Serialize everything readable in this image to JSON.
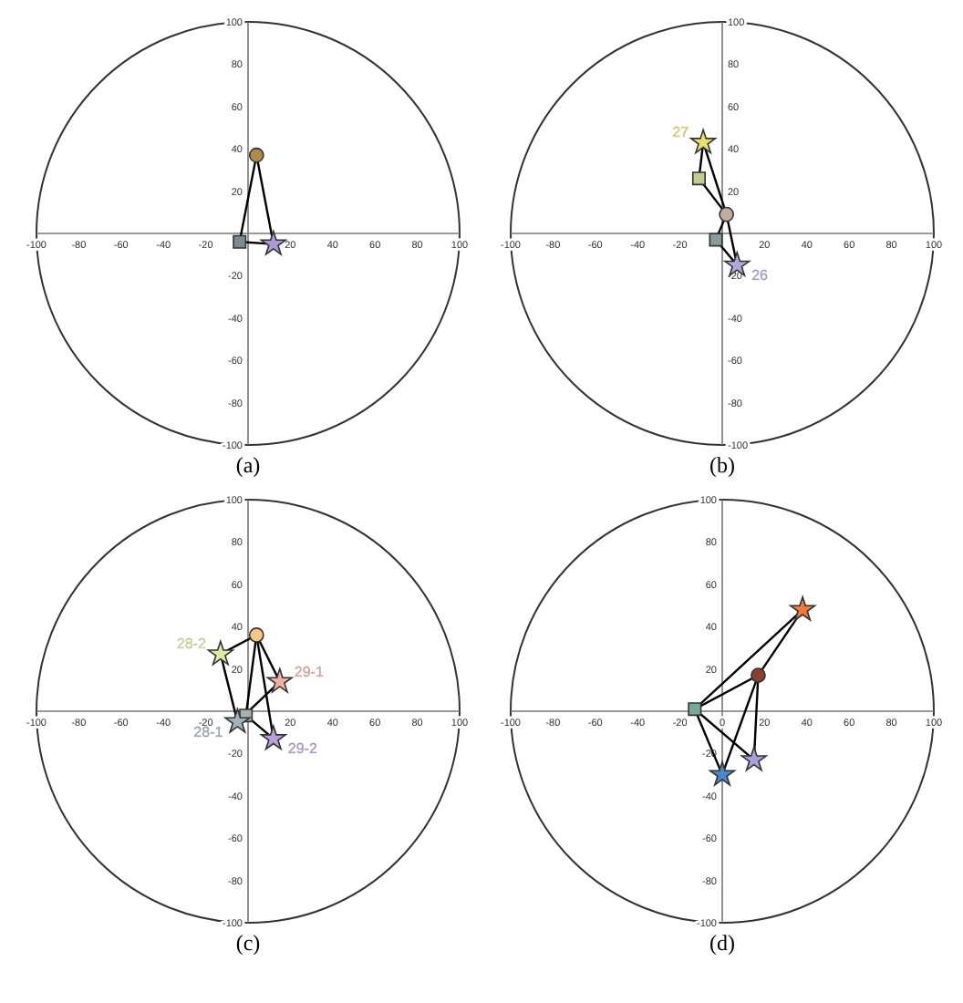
{
  "chart_data": [
    {
      "type": "scatter",
      "title": "(a)",
      "xlim": [
        -100,
        100
      ],
      "ylim": [
        -100,
        100
      ],
      "xticks": [
        -100,
        -80,
        -60,
        -40,
        -20,
        20,
        40,
        60,
        80,
        100
      ],
      "yticks": [
        -100,
        -80,
        -60,
        -40,
        -20,
        20,
        40,
        60,
        80,
        100
      ],
      "series": [
        {
          "type": "line",
          "color": "#000000",
          "x": [
            -4,
            4
          ],
          "values": [
            -4,
            37
          ]
        },
        {
          "type": "line",
          "color": "#000000",
          "x": [
            4,
            12
          ],
          "values": [
            37,
            -5
          ]
        },
        {
          "type": "line",
          "color": "#000000",
          "x": [
            -4,
            12
          ],
          "values": [
            -4,
            -5
          ]
        },
        {
          "marker": "circle",
          "color": "#b08a4a",
          "x": [
            4
          ],
          "values": [
            37
          ]
        },
        {
          "marker": "square",
          "color": "#7a8c8f",
          "x": [
            -4
          ],
          "values": [
            -4
          ]
        },
        {
          "marker": "star",
          "color": "#a99ad6",
          "x": [
            12
          ],
          "values": [
            -5
          ]
        }
      ]
    },
    {
      "type": "scatter",
      "title": "(b)",
      "xlim": [
        -100,
        100
      ],
      "ylim": [
        -100,
        100
      ],
      "xticks": [
        -100,
        -80,
        -60,
        -40,
        -20,
        20,
        40,
        60,
        80,
        100
      ],
      "yticks": [
        -100,
        -80,
        -60,
        -40,
        -20,
        20,
        40,
        60,
        80,
        100
      ],
      "series": [
        {
          "type": "line",
          "color": "#000000",
          "x": [
            -9,
            -11
          ],
          "values": [
            43,
            26
          ]
        },
        {
          "type": "line",
          "color": "#000000",
          "x": [
            -9,
            2
          ],
          "values": [
            43,
            9
          ]
        },
        {
          "type": "line",
          "color": "#000000",
          "x": [
            -11,
            2
          ],
          "values": [
            26,
            9
          ]
        },
        {
          "type": "line",
          "color": "#000000",
          "x": [
            2,
            -3
          ],
          "values": [
            9,
            -3
          ]
        },
        {
          "type": "line",
          "color": "#000000",
          "x": [
            2,
            7
          ],
          "values": [
            9,
            -15
          ]
        },
        {
          "type": "line",
          "color": "#000000",
          "x": [
            -3,
            7
          ],
          "values": [
            -3,
            -15
          ]
        },
        {
          "marker": "square",
          "color": "#c2cc8c",
          "x": [
            -11
          ],
          "values": [
            26
          ]
        },
        {
          "marker": "circle",
          "color": "#bfae9c",
          "x": [
            2
          ],
          "values": [
            9
          ]
        },
        {
          "marker": "square",
          "color": "#8a9a9a",
          "x": [
            -3
          ],
          "values": [
            -3
          ]
        },
        {
          "name": "27",
          "marker": "star",
          "color": "#e8e070",
          "x": [
            -9
          ],
          "values": [
            43
          ]
        },
        {
          "name": "26",
          "marker": "star",
          "color": "#b0a8d8",
          "x": [
            7
          ],
          "values": [
            -15
          ]
        }
      ]
    },
    {
      "type": "scatter",
      "title": "(c)",
      "xlim": [
        -100,
        100
      ],
      "ylim": [
        -100,
        100
      ],
      "xticks": [
        -100,
        -80,
        -60,
        -40,
        -20,
        20,
        40,
        60,
        80,
        100
      ],
      "yticks": [
        -100,
        -80,
        -60,
        -40,
        -20,
        20,
        40,
        60,
        80,
        100
      ],
      "series": [
        {
          "type": "line",
          "color": "#000000",
          "x": [
            4,
            -13
          ],
          "values": [
            36,
            27
          ]
        },
        {
          "type": "line",
          "color": "#000000",
          "x": [
            4,
            15
          ],
          "values": [
            36,
            14
          ]
        },
        {
          "type": "line",
          "color": "#000000",
          "x": [
            4,
            12
          ],
          "values": [
            36,
            -13
          ]
        },
        {
          "type": "line",
          "color": "#000000",
          "x": [
            4,
            -1
          ],
          "values": [
            36,
            -2
          ]
        },
        {
          "type": "line",
          "color": "#000000",
          "x": [
            -13,
            -5
          ],
          "values": [
            27,
            -5
          ]
        },
        {
          "type": "line",
          "color": "#000000",
          "x": [
            15,
            -5
          ],
          "values": [
            14,
            -5
          ]
        },
        {
          "type": "line",
          "color": "#000000",
          "x": [
            -1,
            12
          ],
          "values": [
            -2,
            -13
          ]
        },
        {
          "marker": "circle",
          "color": "#f8c880",
          "x": [
            4
          ],
          "values": [
            36
          ]
        },
        {
          "marker": "square",
          "color": "#a8b0b0",
          "x": [
            -1
          ],
          "values": [
            -2
          ]
        },
        {
          "name": "28-2",
          "marker": "star",
          "color": "#e0e8a0",
          "x": [
            -13
          ],
          "values": [
            27
          ]
        },
        {
          "name": "29-1",
          "marker": "star",
          "color": "#f0b0a0",
          "x": [
            15
          ],
          "values": [
            14
          ]
        },
        {
          "name": "28-1",
          "marker": "star",
          "color": "#a0b4bc",
          "x": [
            -5
          ],
          "values": [
            -5
          ]
        },
        {
          "name": "29-2",
          "marker": "star",
          "color": "#b8a0d8",
          "x": [
            12
          ],
          "values": [
            -13
          ]
        }
      ]
    },
    {
      "type": "scatter",
      "title": "(d)",
      "xlim": [
        -100,
        100
      ],
      "ylim": [
        -100,
        100
      ],
      "xticks": [
        -100,
        -80,
        -60,
        -40,
        -20,
        0,
        20,
        40,
        60,
        80,
        100
      ],
      "yticks": [
        -100,
        -80,
        -60,
        -40,
        -20,
        20,
        40,
        60,
        80,
        100
      ],
      "series": [
        {
          "type": "line",
          "color": "#000000",
          "x": [
            -13,
            38
          ],
          "values": [
            1,
            48
          ]
        },
        {
          "type": "line",
          "color": "#000000",
          "x": [
            -13,
            17
          ],
          "values": [
            1,
            17
          ]
        },
        {
          "type": "line",
          "color": "#000000",
          "x": [
            17,
            38
          ],
          "values": [
            17,
            48
          ]
        },
        {
          "type": "line",
          "color": "#000000",
          "x": [
            -13,
            0
          ],
          "values": [
            1,
            -30
          ]
        },
        {
          "type": "line",
          "color": "#000000",
          "x": [
            -13,
            15
          ],
          "values": [
            1,
            -23
          ]
        },
        {
          "type": "line",
          "color": "#000000",
          "x": [
            17,
            0
          ],
          "values": [
            17,
            -30
          ]
        },
        {
          "type": "line",
          "color": "#000000",
          "x": [
            17,
            15
          ],
          "values": [
            17,
            -23
          ]
        },
        {
          "marker": "star",
          "color": "#f07838",
          "x": [
            38
          ],
          "values": [
            48
          ]
        },
        {
          "marker": "circle",
          "color": "#8a4030",
          "x": [
            17
          ],
          "values": [
            17
          ]
        },
        {
          "marker": "square",
          "color": "#78aa98",
          "x": [
            -13
          ],
          "values": [
            1
          ]
        },
        {
          "marker": "star",
          "color": "#4a88c8",
          "x": [
            0
          ],
          "values": [
            -30
          ]
        },
        {
          "marker": "star",
          "color": "#a8a0d8",
          "x": [
            15
          ],
          "values": [
            -23
          ]
        }
      ]
    }
  ]
}
